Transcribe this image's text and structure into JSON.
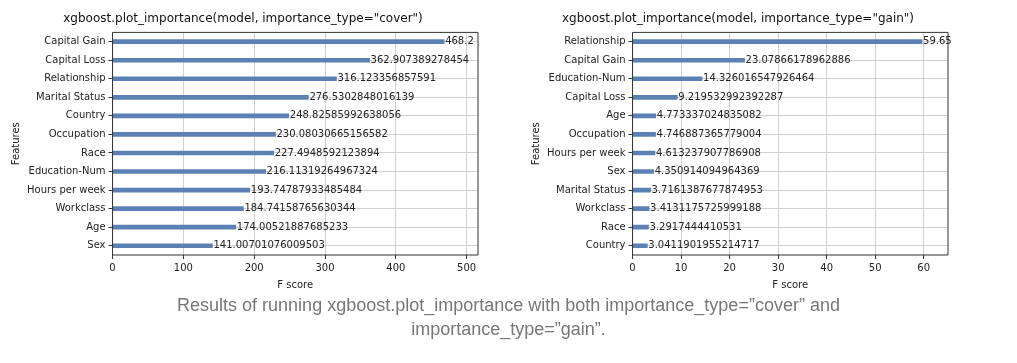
{
  "chart_data": [
    {
      "type": "bar",
      "orientation": "horizontal",
      "title": "xgboost.plot_importance(model, importance_type=\"cover\")",
      "xlabel": "F score",
      "ylabel": "Features",
      "categories": [
        "Capital Gain",
        "Capital Loss",
        "Relationship",
        "Marital Status",
        "Country",
        "Occupation",
        "Race",
        "Education-Num",
        "Hours per week",
        "Workclass",
        "Age",
        "Sex"
      ],
      "values": [
        468.2,
        362.907389278454,
        316.123356857591,
        276.5302848016139,
        248.82585992638056,
        230.08030665156582,
        227.4948592123894,
        216.11319264967324,
        193.74787933485484,
        184.74158765630344,
        174.00521887685233,
        141.00701076009503
      ],
      "color": "#5b80b4",
      "xlim": [
        0,
        516
      ],
      "xticks": [
        0,
        100,
        200,
        300,
        400,
        500
      ],
      "grid": true,
      "data_labels": true,
      "annotations": [
        "Results of running xgboost.plot_importance with both importance_type=”cover” and importance_type=”gain”."
      ]
    },
    {
      "type": "bar",
      "orientation": "horizontal",
      "title": "xgboost.plot_importance(model, importance_type=\"gain\")",
      "xlabel": "F score",
      "ylabel": "Features",
      "categories": [
        "Relationship",
        "Capital Gain",
        "Education-Num",
        "Capital Loss",
        "Age",
        "Occupation",
        "Hours per week",
        "Sex",
        "Marital Status",
        "Workclass",
        "Race",
        "Country"
      ],
      "values": [
        59.65,
        23.07866178962886,
        14.326016547926464,
        9.219532992392287,
        4.773337024835082,
        4.746887365779004,
        4.613237907786908,
        4.350914094964369,
        3.7161387677874953,
        3.4131175725999188,
        3.2917444410531,
        3.0411901955214717
      ],
      "color": "#5b80b4",
      "xlim": [
        0,
        65
      ],
      "xticks": [
        0,
        10,
        20,
        30,
        40,
        50,
        60
      ],
      "grid": true,
      "data_labels": true
    }
  ]
}
